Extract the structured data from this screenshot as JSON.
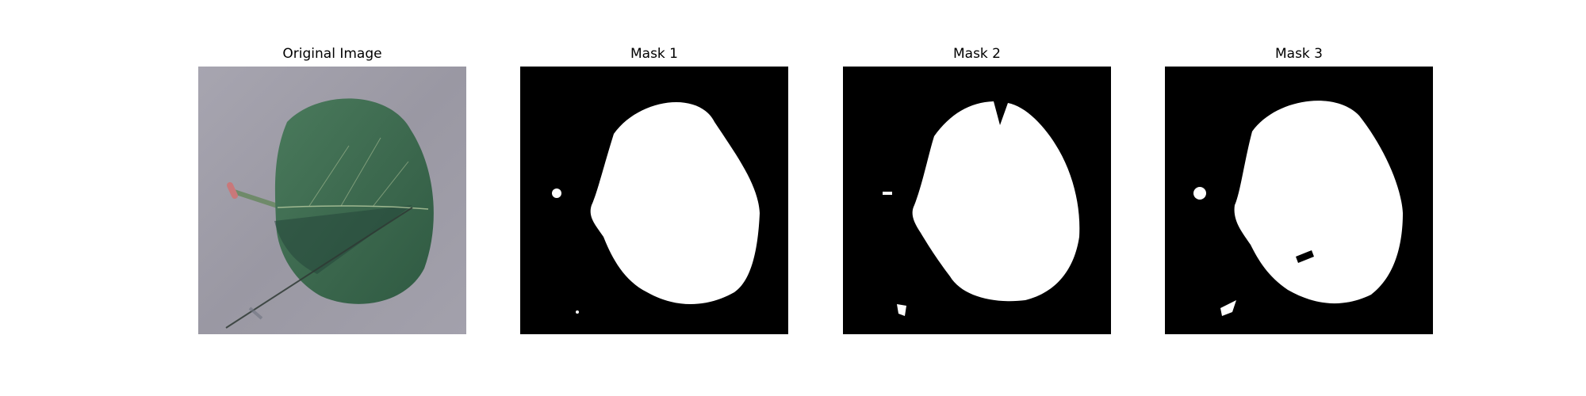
{
  "figure": {
    "panels": [
      {
        "title": "Original Image",
        "kind": "photo"
      },
      {
        "title": "Mask 1",
        "kind": "mask"
      },
      {
        "title": "Mask 2",
        "kind": "mask"
      },
      {
        "title": "Mask 3",
        "kind": "mask"
      }
    ],
    "colors": {
      "background": "#ffffff",
      "mask_background": "#000000",
      "mask_foreground": "#ffffff",
      "leaf": "#3d6b4f",
      "surface": "#9a98a4"
    }
  }
}
